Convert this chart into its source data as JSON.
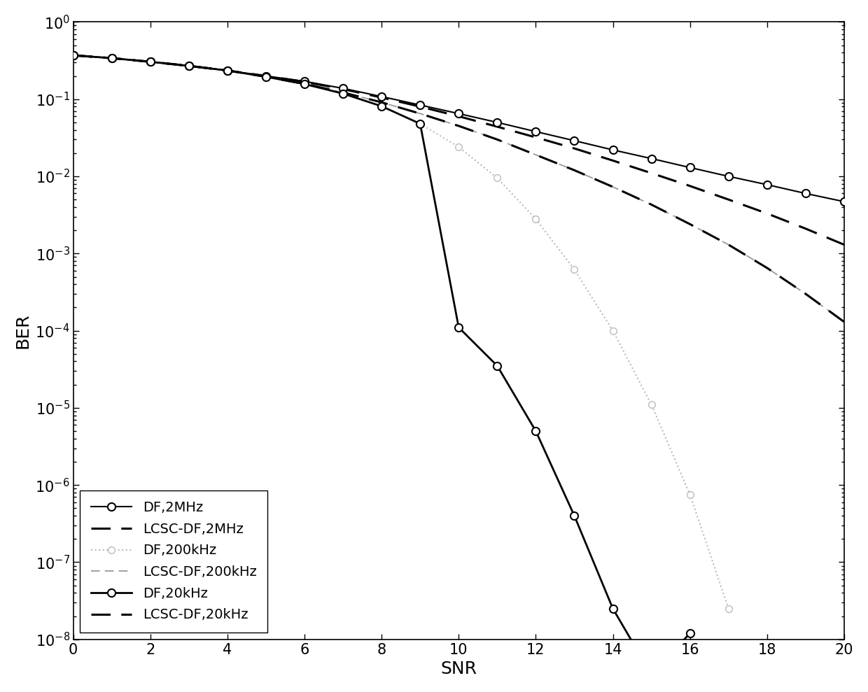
{
  "xlabel": "SNR",
  "ylabel": "BER",
  "xlim": [
    0,
    20
  ],
  "ylim": [
    1e-08,
    1.0
  ],
  "xticks": [
    0,
    2,
    4,
    6,
    8,
    10,
    12,
    14,
    16,
    18,
    20
  ],
  "legend_loc": "lower left",
  "figsize": [
    12.4,
    9.89
  ],
  "dpi": 100,
  "fontsize_label": 18,
  "fontsize_tick": 15,
  "fontsize_legend": 14,
  "series": [
    {
      "label": "DF,2MHz",
      "snr": [
        0,
        1,
        2,
        3,
        4,
        5,
        6,
        7,
        8,
        9,
        10,
        11,
        12,
        13,
        14,
        15,
        16,
        17,
        18,
        19,
        20
      ],
      "ber": [
        0.37,
        0.34,
        0.305,
        0.27,
        0.235,
        0.2,
        0.17,
        0.138,
        0.108,
        0.084,
        0.065,
        0.05,
        0.038,
        0.029,
        0.022,
        0.017,
        0.013,
        0.01,
        0.0078,
        0.006,
        0.0047
      ],
      "color": "#000000",
      "linestyle": "-",
      "linewidth": 1.5,
      "marker": "o",
      "markersize": 8,
      "markerfacecolor": "white",
      "markeredgecolor": "#000000",
      "markeredgewidth": 1.5,
      "zorder": 3
    },
    {
      "label": "LCSC-DF,2MHz",
      "snr": [
        0,
        1,
        2,
        3,
        4,
        5,
        6,
        7,
        8,
        9,
        10,
        11,
        12,
        13,
        14,
        15,
        16,
        17,
        18,
        19,
        20
      ],
      "ber": [
        0.37,
        0.34,
        0.305,
        0.27,
        0.235,
        0.2,
        0.168,
        0.135,
        0.105,
        0.08,
        0.06,
        0.044,
        0.032,
        0.023,
        0.016,
        0.011,
        0.0075,
        0.005,
        0.0033,
        0.0021,
        0.0013
      ],
      "color": "#000000",
      "linestyle": "--",
      "linewidth": 2.2,
      "dashes": [
        9,
        5
      ],
      "marker": null,
      "markersize": 0,
      "zorder": 2
    },
    {
      "label": "DF,200kHz",
      "snr": [
        0,
        1,
        2,
        3,
        4,
        5,
        6,
        7,
        8,
        9,
        10,
        11,
        12,
        13,
        14,
        15,
        16,
        17
      ],
      "ber": [
        0.37,
        0.34,
        0.305,
        0.27,
        0.235,
        0.195,
        0.157,
        0.118,
        0.081,
        0.048,
        0.024,
        0.0095,
        0.0028,
        0.00062,
        0.0001,
        1.1e-05,
        7.5e-07,
        2.5e-08
      ],
      "color": "#bbbbbb",
      "linestyle": ":",
      "linewidth": 1.5,
      "marker": "o",
      "markersize": 7,
      "markerfacecolor": "white",
      "markeredgecolor": "#bbbbbb",
      "markeredgewidth": 1.0,
      "zorder": 2
    },
    {
      "label": "LCSC-DF,200kHz",
      "snr": [
        0,
        1,
        2,
        3,
        4,
        5,
        6,
        7,
        8,
        9,
        10,
        11,
        12,
        13,
        14,
        15,
        16,
        17,
        18,
        19,
        20
      ],
      "ber": [
        0.37,
        0.34,
        0.305,
        0.27,
        0.235,
        0.195,
        0.158,
        0.122,
        0.091,
        0.065,
        0.045,
        0.03,
        0.019,
        0.012,
        0.0073,
        0.0043,
        0.0024,
        0.0013,
        0.00065,
        0.0003,
        0.00013
      ],
      "color": "#999999",
      "linestyle": "--",
      "linewidth": 1.3,
      "dashes": [
        7,
        4
      ],
      "marker": null,
      "markersize": 0,
      "zorder": 1
    },
    {
      "label": "DF,20kHz",
      "snr": [
        0,
        1,
        2,
        3,
        4,
        5,
        6,
        7,
        8,
        9,
        10,
        11,
        12,
        13,
        14,
        15,
        16
      ],
      "ber": [
        0.37,
        0.34,
        0.305,
        0.27,
        0.235,
        0.195,
        0.157,
        0.118,
        0.081,
        0.048,
        0.00011,
        3.5e-05,
        5e-06,
        4e-07,
        2.5e-08,
        3.5e-09,
        1.2e-08
      ],
      "color": "#000000",
      "linestyle": "-",
      "linewidth": 2.0,
      "marker": "o",
      "markersize": 8,
      "markerfacecolor": "white",
      "markeredgecolor": "#000000",
      "markeredgewidth": 1.5,
      "zorder": 4
    },
    {
      "label": "LCSC-DF,20kHz",
      "snr": [
        0,
        1,
        2,
        3,
        4,
        5,
        6,
        7,
        8,
        9,
        10,
        11,
        12,
        13,
        14,
        15,
        16,
        17,
        18,
        19,
        20
      ],
      "ber": [
        0.37,
        0.34,
        0.305,
        0.27,
        0.235,
        0.195,
        0.158,
        0.122,
        0.091,
        0.065,
        0.045,
        0.03,
        0.019,
        0.012,
        0.0073,
        0.0043,
        0.0024,
        0.0013,
        0.00065,
        0.0003,
        0.00013
      ],
      "color": "#000000",
      "linestyle": "--",
      "linewidth": 2.2,
      "dashes": [
        9,
        5
      ],
      "marker": null,
      "markersize": 0,
      "zorder": 2
    }
  ]
}
